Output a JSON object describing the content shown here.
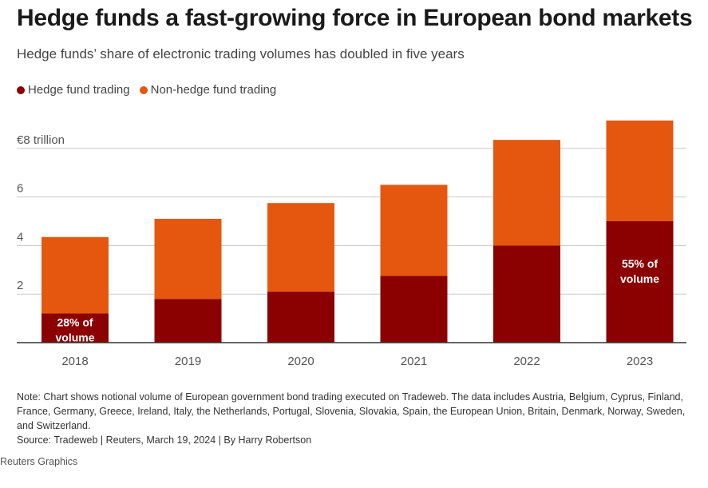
{
  "title": "Hedge funds a fast-growing force in European bond markets",
  "subtitle": "Hedge funds’ share of electronic trading volumes has doubled in five years",
  "legend": {
    "hedge_label": "Hedge fund trading",
    "non_hedge_label": "Non-hedge fund trading"
  },
  "colors": {
    "hedge": "#8b0000",
    "non_hedge": "#e5570f",
    "grid": "#c8c8c8",
    "axis": "#333333"
  },
  "chart_data": {
    "type": "bar",
    "stacked": true,
    "categories": [
      "2018",
      "2019",
      "2020",
      "2021",
      "2022",
      "2023"
    ],
    "series": [
      {
        "name": "Hedge fund trading",
        "values": [
          1.2,
          1.8,
          2.1,
          2.75,
          4.0,
          5.0
        ]
      },
      {
        "name": "Non-hedge fund trading",
        "values": [
          3.15,
          3.3,
          3.65,
          3.75,
          4.35,
          4.15
        ]
      }
    ],
    "yticks": [
      {
        "value": 2,
        "label": "2"
      },
      {
        "value": 4,
        "label": "4"
      },
      {
        "value": 6,
        "label": "6"
      },
      {
        "value": 8,
        "label": "€8 trillion"
      }
    ],
    "ylim": [
      0,
      9.5
    ],
    "annotations": [
      {
        "category": "2018",
        "lines": [
          "28% of",
          "volume"
        ]
      },
      {
        "category": "2023",
        "lines": [
          "55% of",
          "volume"
        ]
      }
    ]
  },
  "note": "Note: Chart shows notional volume of European government bond trading executed on Tradeweb. The data includes Austria, Belgium, Cyprus, Finland, France, Germany, Greece, Ireland, Italy, the Netherlands, Portugal, Slovenia, Slovakia, Spain, the European Union, Britain, Denmark, Norway, Sweden, and Switzerland.",
  "source": "Source: Tradeweb | Reuters, March 19, 2024 | By Harry Robertson",
  "credit": "Reuters Graphics"
}
